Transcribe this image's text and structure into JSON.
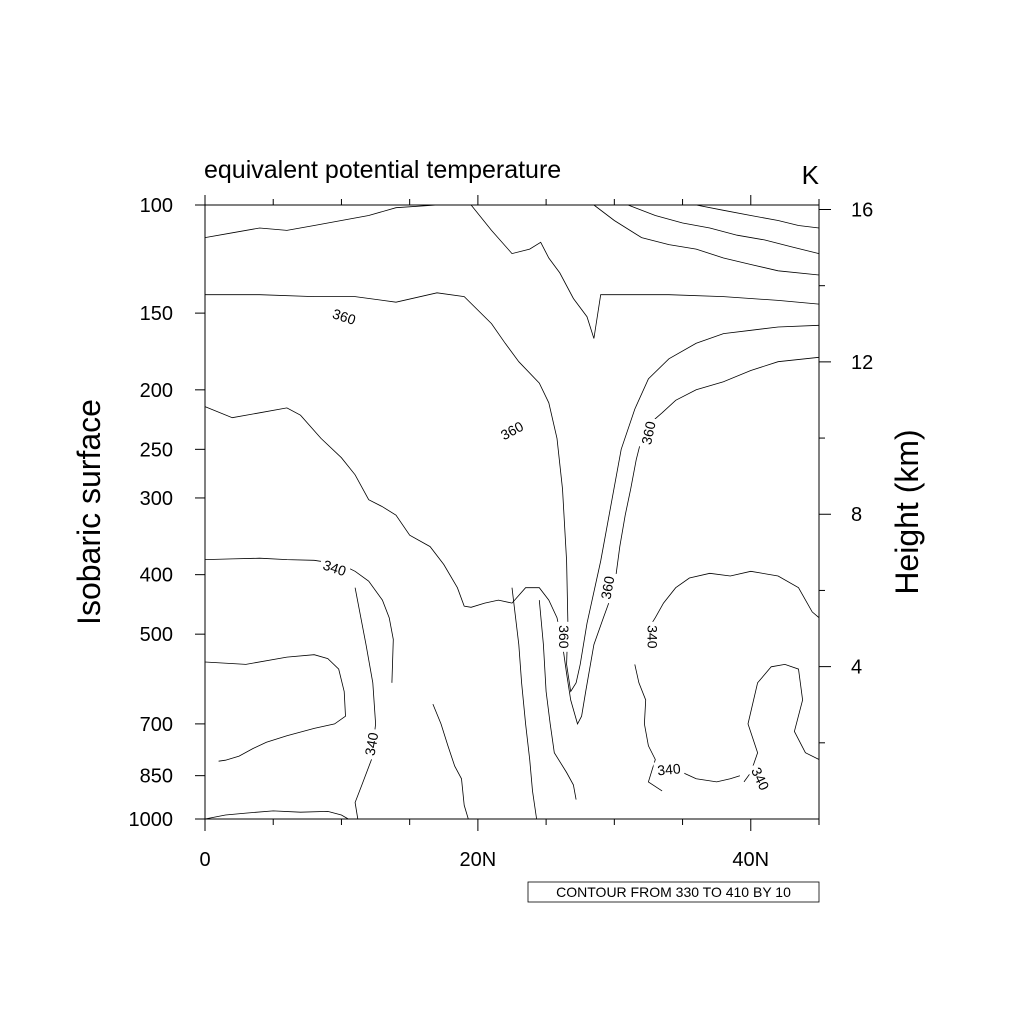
{
  "chart_data": {
    "type": "contour",
    "title": "equivalent potential temperature",
    "units_label": "K",
    "ylabel": "Isobaric surface",
    "y2label": "Height (km)",
    "xlim": [
      0,
      45
    ],
    "ylim": [
      1000,
      100
    ],
    "y_scale": "log",
    "x_ticks": [
      {
        "value": 0,
        "label": "0"
      },
      {
        "value": 20,
        "label": "20N"
      },
      {
        "value": 40,
        "label": "40N"
      }
    ],
    "x_minor_ticks": [
      5,
      10,
      15,
      25,
      30,
      35,
      45
    ],
    "y_ticks": [
      {
        "value": 100,
        "label": "100"
      },
      {
        "value": 150,
        "label": "150"
      },
      {
        "value": 200,
        "label": "200"
      },
      {
        "value": 250,
        "label": "250"
      },
      {
        "value": 300,
        "label": "300"
      },
      {
        "value": 400,
        "label": "400"
      },
      {
        "value": 500,
        "label": "500"
      },
      {
        "value": 700,
        "label": "700"
      },
      {
        "value": 850,
        "label": "850"
      },
      {
        "value": 1000,
        "label": "1000"
      }
    ],
    "y2_ticks": [
      {
        "height_km": 4,
        "label": "4"
      },
      {
        "height_km": 8,
        "label": "8"
      },
      {
        "height_km": 12,
        "label": "12"
      },
      {
        "height_km": 16,
        "label": "16"
      }
    ],
    "contour_info": "CONTOUR FROM 330 TO 410 BY 10",
    "contour_levels": [
      330,
      340,
      350,
      360,
      370,
      380,
      390,
      400,
      410
    ],
    "contour_labels": [
      {
        "text": "360",
        "lat": 10.2,
        "p": 152,
        "angle": 18
      },
      {
        "text": "360",
        "lat": 22.5,
        "p": 233,
        "angle": -28
      },
      {
        "text": "360",
        "lat": 32.5,
        "p": 235,
        "angle": -78
      },
      {
        "text": "360",
        "lat": 29.5,
        "p": 420,
        "angle": -80
      },
      {
        "text": "360",
        "lat": 26.3,
        "p": 505,
        "angle": 90
      },
      {
        "text": "340",
        "lat": 9.5,
        "p": 390,
        "angle": 18
      },
      {
        "text": "340",
        "lat": 32.8,
        "p": 505,
        "angle": 90
      },
      {
        "text": "340",
        "lat": 12.2,
        "p": 755,
        "angle": -80
      },
      {
        "text": "340",
        "lat": 34.0,
        "p": 830,
        "angle": -5
      },
      {
        "text": "340",
        "lat": 40.7,
        "p": 860,
        "angle": 65
      }
    ],
    "contours": [
      {
        "level": 330,
        "points": [
          [
            0,
            113
          ],
          [
            2,
            111
          ],
          [
            4,
            109
          ],
          [
            6,
            110
          ],
          [
            8,
            108
          ],
          [
            10,
            106
          ],
          [
            12,
            104
          ],
          [
            14,
            101
          ],
          [
            17,
            100
          ]
        ]
      },
      {
        "level": 350,
        "points": [
          [
            0,
            140
          ],
          [
            4,
            140
          ],
          [
            8,
            141
          ],
          [
            11,
            141
          ],
          [
            14,
            144
          ],
          [
            17,
            139
          ],
          [
            19,
            141
          ],
          [
            21,
            156
          ],
          [
            22,
            168
          ],
          [
            23,
            180
          ],
          [
            24.5,
            195
          ],
          [
            25.2,
            210
          ],
          [
            25.8,
            240
          ],
          [
            26.2,
            290
          ],
          [
            26.5,
            380
          ],
          [
            26.6,
            480
          ],
          [
            26.5,
            560
          ],
          [
            26.8,
            620
          ],
          [
            27.2,
            600
          ],
          [
            27.5,
            560
          ],
          [
            28,
            480
          ],
          [
            29,
            380
          ],
          [
            30.5,
            250
          ],
          [
            31.5,
            215
          ],
          [
            32.5,
            192
          ],
          [
            34,
            178
          ],
          [
            36,
            168
          ],
          [
            38,
            162
          ],
          [
            40,
            160
          ],
          [
            42,
            158
          ],
          [
            45,
            157
          ]
        ]
      },
      {
        "level": 360,
        "points": [
          [
            19.5,
            100
          ],
          [
            21,
            110
          ],
          [
            22.5,
            120
          ],
          [
            23.8,
            118
          ],
          [
            24.6,
            115
          ],
          [
            25.2,
            122
          ],
          [
            26,
            129
          ],
          [
            27,
            142
          ],
          [
            28,
            152
          ],
          [
            28.5,
            165
          ],
          [
            29,
            140
          ],
          [
            31,
            140
          ],
          [
            34,
            140
          ],
          [
            38,
            141
          ],
          [
            42,
            143
          ],
          [
            45,
            145
          ]
        ]
      },
      {
        "level": 370,
        "points": [
          [
            28.5,
            100
          ],
          [
            30,
            106
          ],
          [
            32,
            113
          ],
          [
            34,
            116
          ],
          [
            36,
            118
          ],
          [
            38,
            122
          ],
          [
            40,
            125
          ],
          [
            42,
            128
          ],
          [
            45,
            130
          ]
        ]
      },
      {
        "level": 380,
        "points": [
          [
            31,
            100
          ],
          [
            33,
            104
          ],
          [
            35,
            107
          ],
          [
            37,
            109
          ],
          [
            39,
            112
          ],
          [
            41,
            114
          ],
          [
            43,
            117
          ],
          [
            45,
            120
          ]
        ]
      },
      {
        "level": 390,
        "points": [
          [
            36,
            100
          ],
          [
            38,
            102
          ],
          [
            40,
            104
          ],
          [
            42,
            106
          ],
          [
            43.5,
            108
          ],
          [
            45,
            109
          ]
        ]
      },
      {
        "level": 360,
        "points": [
          [
            0,
            213
          ],
          [
            2,
            222
          ],
          [
            4,
            218
          ],
          [
            6,
            214
          ],
          [
            7,
            220
          ],
          [
            8.5,
            240
          ],
          [
            10,
            258
          ],
          [
            11,
            275
          ],
          [
            12,
            302
          ],
          [
            13,
            310
          ],
          [
            14,
            320
          ],
          [
            15,
            345
          ],
          [
            16.5,
            360
          ],
          [
            17.5,
            385
          ],
          [
            18.5,
            420
          ],
          [
            19,
            450
          ],
          [
            19.5,
            452
          ],
          [
            20.5,
            445
          ],
          [
            21.5,
            440
          ],
          [
            22.5,
            445
          ],
          [
            23.5,
            420
          ],
          [
            24.5,
            420
          ],
          [
            25.2,
            440
          ],
          [
            25.8,
            470
          ],
          [
            26.2,
            520
          ],
          [
            26.5,
            580
          ],
          [
            26.8,
            640
          ],
          [
            27.3,
            700
          ],
          [
            27.6,
            680
          ],
          [
            27.9,
            620
          ],
          [
            28.5,
            520
          ],
          [
            29.2,
            470
          ],
          [
            30,
            420
          ],
          [
            30.4,
            360
          ],
          [
            30.8,
            320
          ],
          [
            31.2,
            290
          ],
          [
            31.6,
            260
          ],
          [
            32,
            240
          ],
          [
            32.8,
            225
          ],
          [
            33.5,
            218
          ],
          [
            34.5,
            208
          ],
          [
            36,
            200
          ],
          [
            38,
            194
          ],
          [
            40,
            186
          ],
          [
            42,
            180
          ],
          [
            45,
            177
          ]
        ]
      },
      {
        "level": 340,
        "points": [
          [
            0,
            378
          ],
          [
            2,
            377
          ],
          [
            4,
            376
          ],
          [
            6,
            378
          ],
          [
            8,
            379
          ],
          [
            10,
            385
          ],
          [
            11,
            395
          ],
          [
            12,
            410
          ],
          [
            13,
            440
          ],
          [
            13.5,
            470
          ],
          [
            13.8,
            510
          ],
          [
            13.7,
            600
          ]
        ]
      },
      {
        "level": 340,
        "points": [
          [
            32.5,
            490
          ],
          [
            33,
            470
          ],
          [
            33.6,
            445
          ],
          [
            34.5,
            420
          ],
          [
            35.5,
            405
          ],
          [
            37,
            398
          ],
          [
            38.5,
            402
          ],
          [
            40,
            395
          ],
          [
            42,
            402
          ],
          [
            43.5,
            420
          ],
          [
            44.5,
            460
          ],
          [
            45,
            470
          ]
        ]
      },
      {
        "level": 340,
        "points": [
          [
            0,
            555
          ],
          [
            3,
            560
          ],
          [
            6,
            545
          ],
          [
            8,
            540
          ],
          [
            9,
            548
          ],
          [
            9.8,
            570
          ],
          [
            10.2,
            620
          ],
          [
            10.3,
            680
          ],
          [
            9.5,
            700
          ],
          [
            8,
            712
          ],
          [
            6,
            732
          ],
          [
            4.5,
            750
          ],
          [
            3.5,
            768
          ],
          [
            2.5,
            790
          ],
          [
            1.5,
            802
          ],
          [
            1,
            805
          ]
        ]
      },
      {
        "level": 330,
        "points": [
          [
            0,
            1000
          ],
          [
            1.5,
            985
          ],
          [
            3,
            978
          ],
          [
            5,
            970
          ],
          [
            7,
            975
          ],
          [
            9,
            972
          ],
          [
            10,
            985
          ],
          [
            10.5,
            1000
          ]
        ]
      },
      {
        "level": 340,
        "points": [
          [
            39.5,
            870
          ],
          [
            40,
            840
          ],
          [
            40.5,
            780
          ],
          [
            39.8,
            700
          ],
          [
            40.5,
            600
          ],
          [
            41.5,
            565
          ],
          [
            42.5,
            560
          ],
          [
            43.5,
            570
          ],
          [
            43.8,
            640
          ],
          [
            43.2,
            720
          ],
          [
            44,
            780
          ],
          [
            45,
            800
          ]
        ]
      },
      {
        "level": 340,
        "points": [
          [
            34.5,
            810
          ],
          [
            35,
            840
          ],
          [
            36,
            860
          ],
          [
            37.5,
            870
          ],
          [
            38.5,
            860
          ],
          [
            39.2,
            850
          ]
        ]
      },
      {
        "level": 340,
        "points": [
          [
            31.5,
            560
          ],
          [
            31.8,
            600
          ],
          [
            32.3,
            640
          ],
          [
            32.2,
            700
          ],
          [
            32.5,
            760
          ],
          [
            33,
            800
          ],
          [
            32.5,
            870
          ],
          [
            33.5,
            900
          ]
        ]
      },
      {
        "level": 350,
        "points": [
          [
            22.5,
            420
          ],
          [
            23,
            520
          ],
          [
            23.2,
            600
          ],
          [
            23.5,
            700
          ],
          [
            23.8,
            800
          ],
          [
            24,
            900
          ],
          [
            24.3,
            1000
          ]
        ]
      },
      {
        "level": 350,
        "points": [
          [
            24.5,
            440
          ],
          [
            24.8,
            520
          ],
          [
            25,
            620
          ],
          [
            25.3,
            700
          ],
          [
            25.6,
            780
          ],
          [
            26.5,
            840
          ],
          [
            27,
            880
          ],
          [
            27.2,
            930
          ]
        ]
      },
      {
        "level": 340,
        "points": [
          [
            16.7,
            650
          ],
          [
            17.3,
            700
          ],
          [
            17.8,
            760
          ],
          [
            18.3,
            820
          ],
          [
            18.8,
            860
          ],
          [
            19,
            950
          ],
          [
            19.3,
            1000
          ]
        ]
      },
      {
        "level": 340,
        "points": [
          [
            11,
            420
          ],
          [
            11.8,
            520
          ],
          [
            12.3,
            600
          ],
          [
            12.5,
            700
          ],
          [
            12.2,
            800
          ],
          [
            11.5,
            880
          ],
          [
            11,
            940
          ],
          [
            11.2,
            1000
          ]
        ]
      }
    ]
  }
}
